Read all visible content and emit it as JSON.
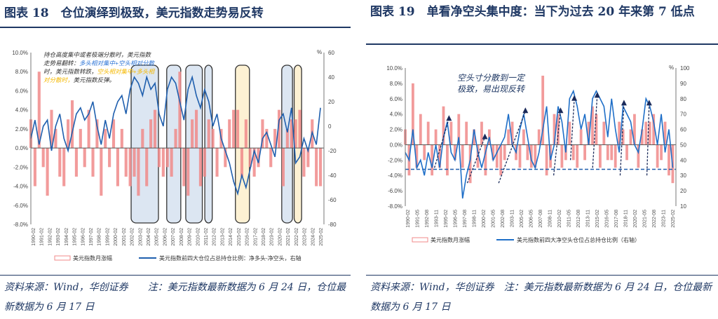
{
  "left": {
    "title": "图表 18　仓位演绎到极致，美元指数走势易反转",
    "source": "资料来源：Wind，华创证券　　注：美元指数最新数据为 6 月 24 日，仓位最新数据为 6 月 17 日"
  },
  "right": {
    "title": "图表 19　单看净空头集中度：当下为过去 20 年来第 7 低点",
    "source": "资料来源：Wind，华创证券　注：美元指数最新数据为 6 月 24 日，仓位最新数据为 6 月 17 日"
  },
  "chart_data": [
    {
      "type": "bar+line",
      "bar_color": "#f08a8a",
      "line_color": "#1f5fae",
      "annotation": [
        "持仓高度集中或者极端分散时，美元指数",
        "走势易翻转：",
        "多头相对集中+空头相对分散",
        "时，美元指数转跌，",
        "空头相对集中+多头相",
        "对分散时，",
        "美元指数反弹。"
      ],
      "annotation_colors": {
        "dark": "#333333",
        "blue": "#2e75d6",
        "yellow": "#f5b800"
      },
      "right_unit": "%",
      "ylim_left": [
        -8,
        10
      ],
      "yticks_left": [
        "10.0%",
        "8.0%",
        "6.0%",
        "4.0%",
        "2.0%",
        "0.0%",
        "-2.0%",
        "-4.0%",
        "-6.0%",
        "-8.0%"
      ],
      "ylim_right": [
        -80,
        60
      ],
      "yticks_right": [
        "60",
        "40",
        "20",
        "0",
        "-20",
        "-40",
        "-60",
        "-80"
      ],
      "xlim": [
        1990.08,
        2025.5
      ],
      "xticks": [
        "1990-02",
        "1991-02",
        "1992-02",
        "1993-02",
        "1994-02",
        "1995-02",
        "1996-02",
        "1997-02",
        "1998-02",
        "1999-02",
        "2000-02",
        "2001-02",
        "2002-02",
        "2003-02",
        "2004-02",
        "2005-02",
        "2006-02",
        "2007-02",
        "2008-02",
        "2009-02",
        "2010-02",
        "2011-02",
        "2012-02",
        "2013-02",
        "2014-02",
        "2015-02",
        "2016-02",
        "2017-02",
        "2018-02",
        "2019-02",
        "2020-02",
        "2021-02",
        "2022-02",
        "2023-02",
        "2024-02",
        "2025-02"
      ],
      "x_start": 1990.08,
      "x_step": 0.5,
      "bars_name": "美元指数月涨幅",
      "bars": [
        3,
        -4,
        8,
        -2,
        -5,
        4,
        2,
        -3,
        -4,
        3,
        5,
        -3,
        2,
        -2,
        4,
        -3,
        3,
        -5,
        2,
        -2,
        3,
        -4,
        2,
        -3,
        -4,
        -3,
        -5,
        2,
        -4,
        3,
        4,
        -2,
        -3,
        -2,
        -3,
        2,
        8,
        -4,
        -5,
        3,
        4,
        -4,
        -3,
        3,
        2,
        -3,
        2,
        -2,
        3,
        4,
        4,
        -3,
        3,
        -2,
        -3,
        -2,
        3,
        2,
        -2,
        2,
        4,
        -4,
        2,
        3,
        3,
        4,
        -3,
        -2,
        3,
        -4,
        -4
      ],
      "line_name": "美元指数前四大仓位占总持仓比例：净多头-净空头，右轴",
      "line": [
        -10,
        5,
        -15,
        0,
        5,
        -20,
        0,
        10,
        -10,
        -20,
        -5,
        10,
        15,
        5,
        10,
        20,
        0,
        -15,
        5,
        -10,
        10,
        20,
        25,
        10,
        30,
        40,
        35,
        25,
        40,
        30,
        35,
        10,
        0,
        30,
        40,
        35,
        20,
        5,
        30,
        40,
        25,
        15,
        30,
        20,
        0,
        10,
        -10,
        -20,
        -30,
        -45,
        -55,
        -40,
        -50,
        -35,
        -20,
        -30,
        -10,
        -5,
        -15,
        -25,
        5,
        10,
        -5,
        15,
        -30,
        -25,
        -10,
        -20,
        -5,
        -15,
        15
      ],
      "highlights": [
        {
          "from": 2002.2,
          "to": 2005.5,
          "kind": "long",
          "fill": "#dce6f2"
        },
        {
          "from": 2006.5,
          "to": 2008.2,
          "kind": "long",
          "fill": "#dce6f2"
        },
        {
          "from": 2008.8,
          "to": 2010.8,
          "kind": "long",
          "fill": "#dce6f2"
        },
        {
          "from": 2011.1,
          "to": 2012.0,
          "kind": "long",
          "fill": "#dce6f2"
        },
        {
          "from": 2014.8,
          "to": 2016.5,
          "kind": "short",
          "fill": "#fdf1d3"
        },
        {
          "from": 2020.4,
          "to": 2021.7,
          "kind": "long",
          "fill": "#dce6f2"
        },
        {
          "from": 2021.9,
          "to": 2022.8,
          "kind": "short",
          "fill": "#fdf1d3"
        }
      ]
    },
    {
      "type": "bar+line",
      "bar_color": "#f08a8a",
      "line_color": "#1f6fc8",
      "annotation": [
        "空头寸分散到一定",
        "极致，易出现反转"
      ],
      "right_unit": "%",
      "ylim_left": [
        -8,
        10
      ],
      "yticks_left": [
        "10.0%",
        "8.0%",
        "6.0%",
        "4.0%",
        "2.0%",
        "0.0%",
        "-2.0%",
        "-4.0%",
        "-6.0%",
        "-8.0%"
      ],
      "ylim_right": [
        10,
        100
      ],
      "yticks_right": [
        "100",
        "90",
        "80",
        "70",
        "60",
        "50",
        "40",
        "30",
        "20",
        "10"
      ],
      "xlim": [
        1990.08,
        2025.5
      ],
      "xticks": [
        "1990-02",
        "1991-05",
        "1992-08",
        "1993-11",
        "1995-02",
        "1996-05",
        "1997-08",
        "1998-11",
        "2000-02",
        "2001-05",
        "2002-08",
        "2003-11",
        "2005-02",
        "2006-05",
        "2007-08",
        "2008-11",
        "2010-02",
        "2011-05",
        "2012-08",
        "2013-11",
        "2015-02",
        "2016-05",
        "2017-08",
        "2018-11",
        "2020-02",
        "2021-05",
        "2022-08",
        "2023-11",
        "2025-02"
      ],
      "x_start": 1990.08,
      "x_step": 0.5,
      "bars_name": "美元指数月涨幅",
      "bars": [
        2,
        -4,
        8,
        -3,
        4,
        -2,
        3,
        -4,
        2,
        -3,
        5,
        -4,
        3,
        -2,
        4,
        -3,
        3,
        -5,
        2,
        -3,
        3,
        -4,
        2,
        -2,
        -3,
        -4,
        -2,
        2,
        3,
        -2,
        -3,
        2,
        -2,
        -3,
        -3,
        2,
        9,
        -4,
        -3,
        4,
        4,
        -3,
        -2,
        3,
        -2,
        -3,
        2,
        -2,
        3,
        5,
        4,
        -3,
        3,
        -2,
        -2,
        -3,
        3,
        2,
        -2,
        2,
        4,
        -3,
        2,
        3,
        3,
        4,
        -3,
        -2,
        3,
        -4,
        -5
      ],
      "line_name": "美元指数前四大净空头仓位占总持仓比例（右轴）",
      "line": [
        45,
        40,
        60,
        35,
        40,
        30,
        45,
        35,
        50,
        35,
        55,
        65,
        45,
        40,
        55,
        15,
        30,
        40,
        60,
        45,
        35,
        45,
        55,
        40,
        45,
        50,
        55,
        70,
        50,
        45,
        60,
        70,
        55,
        40,
        35,
        45,
        60,
        75,
        40,
        50,
        75,
        65,
        45,
        80,
        85,
        75,
        60,
        70,
        50,
        80,
        85,
        80,
        75,
        55,
        80,
        60,
        45,
        75,
        70,
        65,
        50,
        45,
        60,
        80,
        75,
        65,
        50,
        70,
        45,
        60,
        35
      ],
      "threshold": 34,
      "arrows": [
        [
          1993.9,
          35,
          1995.8,
          67
        ],
        [
          1998.2,
          25,
          2000.5,
          55
        ],
        [
          2002.3,
          25,
          2005.8,
          72
        ],
        [
          2009.5,
          30,
          2010.4,
          72
        ],
        [
          2011.7,
          40,
          2012.2,
          80
        ],
        [
          2014.6,
          35,
          2015.2,
          82
        ],
        [
          2018.2,
          30,
          2018.7,
          77
        ],
        [
          2021.7,
          30,
          2022.0,
          77
        ]
      ]
    }
  ]
}
